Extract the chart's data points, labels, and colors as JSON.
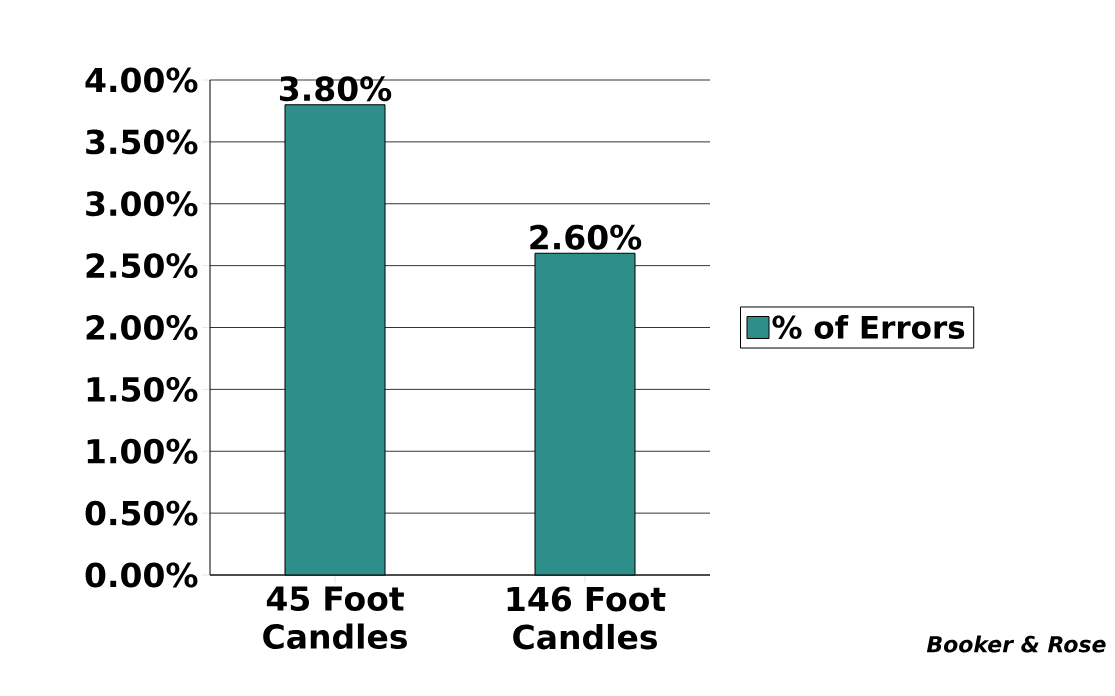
{
  "chart_data": {
    "type": "bar",
    "categories": [
      "45 Foot Candles",
      "146 Foot Candles"
    ],
    "series": [
      {
        "name": "% of Errors",
        "color": "#2e8f8a",
        "values": [
          3.8,
          2.6
        ]
      }
    ],
    "value_labels": [
      "3.80%",
      "2.60%"
    ],
    "ylim": [
      0,
      4
    ],
    "yticks": [
      {
        "value": 0,
        "label": "0.00%"
      },
      {
        "value": 0.5,
        "label": "0.50%"
      },
      {
        "value": 1,
        "label": "1.00%"
      },
      {
        "value": 1.5,
        "label": "1.50%"
      },
      {
        "value": 2,
        "label": "2.00%"
      },
      {
        "value": 2.5,
        "label": "2.50%"
      },
      {
        "value": 3,
        "label": "3.00%"
      },
      {
        "value": 3.5,
        "label": "3.50%"
      },
      {
        "value": 4,
        "label": "4.00%"
      }
    ],
    "grid": "y",
    "legend": "right",
    "annotations": [
      "Booker & Rose"
    ]
  }
}
